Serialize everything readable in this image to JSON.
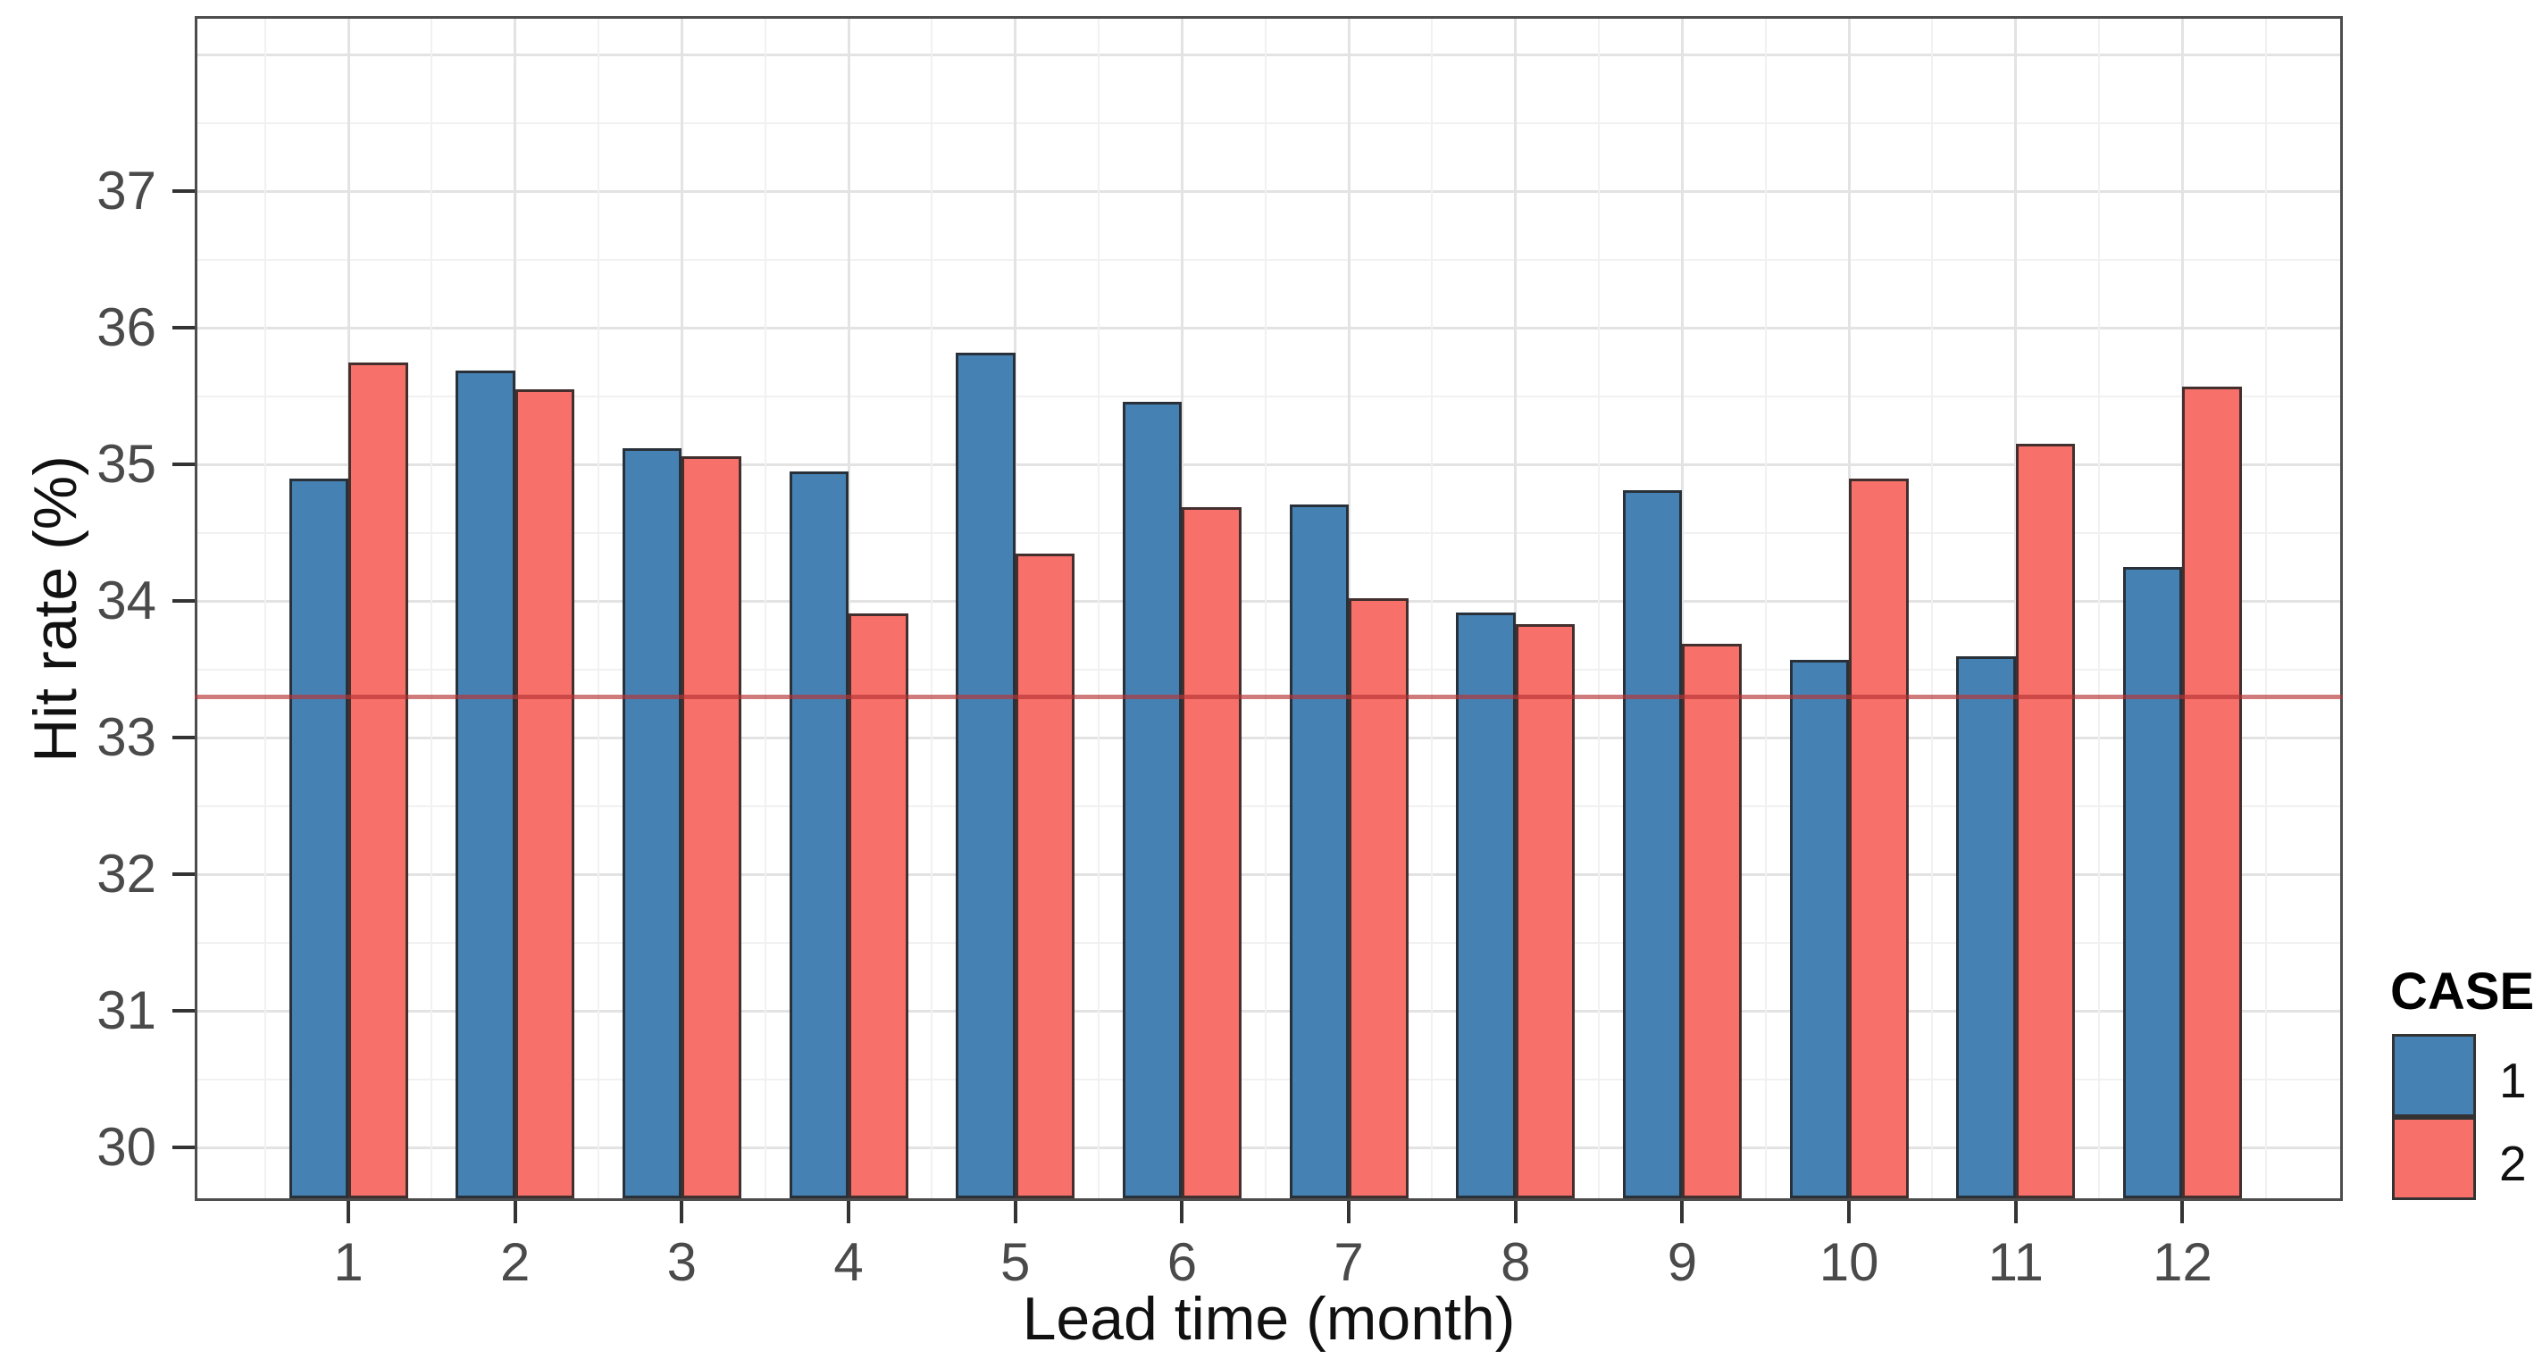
{
  "chart_data": {
    "type": "bar",
    "title": "",
    "xlabel": "Lead time (month)",
    "ylabel": "Hit rate (%)",
    "categories": [
      1,
      2,
      3,
      4,
      5,
      6,
      7,
      8,
      9,
      10,
      11,
      12
    ],
    "series": [
      {
        "name": "1",
        "color": "#4681B3",
        "values": [
          34.9,
          35.69,
          35.12,
          34.95,
          35.82,
          35.46,
          34.71,
          33.92,
          34.81,
          33.57,
          33.6,
          34.25
        ]
      },
      {
        "name": "2",
        "color": "#F7716A",
        "values": [
          35.75,
          35.55,
          35.06,
          33.91,
          34.35,
          34.69,
          34.02,
          33.83,
          33.69,
          34.9,
          35.15,
          35.57
        ]
      }
    ],
    "yticks": [
      30,
      31,
      32,
      33,
      34,
      35,
      36,
      37
    ],
    "ylim": [
      29.61,
      38.28
    ],
    "minor_grid_step": 0.5,
    "grid": true,
    "reference_line": {
      "y": 33.3,
      "color": "#B73434",
      "opacity": 0.65
    },
    "legend": {
      "title": "CASE",
      "position": "right",
      "items": [
        {
          "label": "1"
        },
        {
          "label": "2"
        }
      ]
    },
    "panel_border_color": "#4d4d4d",
    "background": "#ffffff"
  }
}
